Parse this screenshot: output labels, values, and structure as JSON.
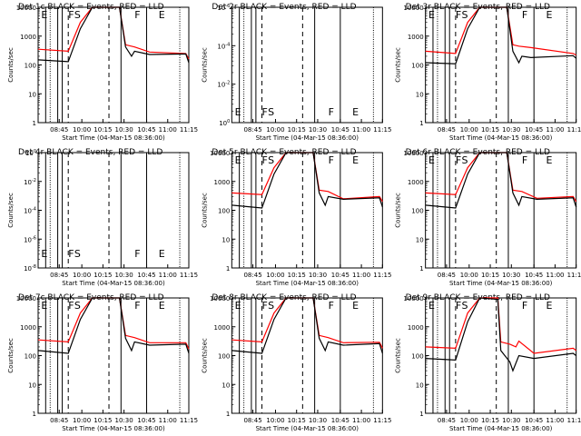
{
  "xlabel": "Start Time (04-Mar-15 08:36:00)",
  "ylabel": "Counts/sec",
  "x_ticks": [
    "08:45",
    "10:00",
    "10:15",
    "10:30",
    "10:45",
    "11:00",
    "11:15"
  ],
  "colors": {
    "events": "#000000",
    "lld": "#ff0000",
    "background": "#ffffff"
  },
  "chart_data": [
    {
      "type": "line",
      "title": "Det 1c BLACK = Events, RED = LLD",
      "scale": "log",
      "y_ticks": [
        "1",
        "10",
        "100",
        "1000",
        "10000"
      ],
      "markers": [
        {
          "label": "E",
          "pos": 0.02
        },
        {
          "label": "F",
          "pos": 0.2
        },
        {
          "label": "S",
          "pos": 0.24
        },
        {
          "label": "F",
          "pos": 0.64
        },
        {
          "label": "E",
          "pos": 0.8
        }
      ],
      "series": [
        {
          "color": "red",
          "points": [
            [
              0,
              350
            ],
            [
              0.2,
              300
            ],
            [
              0.28,
              3000
            ],
            [
              0.36,
              12000
            ],
            [
              0.54,
              12000
            ],
            [
              0.58,
              500
            ],
            [
              0.64,
              420
            ],
            [
              0.74,
              280
            ],
            [
              0.98,
              250
            ],
            [
              1.0,
              160
            ]
          ]
        },
        {
          "color": "black",
          "points": [
            [
              0,
              150
            ],
            [
              0.2,
              130
            ],
            [
              0.28,
              1800
            ],
            [
              0.36,
              10000
            ],
            [
              0.54,
              10000
            ],
            [
              0.58,
              420
            ],
            [
              0.62,
              200
            ],
            [
              0.64,
              300
            ],
            [
              0.74,
              230
            ],
            [
              0.98,
              240
            ],
            [
              1.0,
              120
            ]
          ]
        }
      ]
    },
    {
      "type": "line",
      "title": "Det 2r BLACK = Events, RED = LLD",
      "scale": "log",
      "y_ticks": [
        "10^0",
        "10^-2",
        "10^-4",
        "10^-6"
      ],
      "markers": [
        {
          "label": "E",
          "pos": 0.02
        },
        {
          "label": "F",
          "pos": 0.2
        },
        {
          "label": "S",
          "pos": 0.24
        },
        {
          "label": "F",
          "pos": 0.64
        },
        {
          "label": "E",
          "pos": 0.8
        }
      ],
      "series": []
    },
    {
      "type": "line",
      "title": "Det 3r BLACK = Events, RED = LLD",
      "scale": "log",
      "y_ticks": [
        "1",
        "10",
        "100",
        "1000",
        "10000"
      ],
      "markers": [
        {
          "label": "E",
          "pos": 0.02
        },
        {
          "label": "F",
          "pos": 0.2
        },
        {
          "label": "S",
          "pos": 0.24
        },
        {
          "label": "F",
          "pos": 0.64
        },
        {
          "label": "E",
          "pos": 0.8
        }
      ],
      "series": [
        {
          "color": "red",
          "points": [
            [
              0,
              300
            ],
            [
              0.2,
              250
            ],
            [
              0.28,
              3000
            ],
            [
              0.36,
              12000
            ],
            [
              0.54,
              12000
            ],
            [
              0.58,
              500
            ],
            [
              0.62,
              450
            ],
            [
              0.7,
              400
            ],
            [
              0.98,
              250
            ],
            [
              1.0,
              220
            ]
          ]
        },
        {
          "color": "black",
          "points": [
            [
              0,
              120
            ],
            [
              0.2,
              110
            ],
            [
              0.28,
              1800
            ],
            [
              0.36,
              10000
            ],
            [
              0.54,
              10000
            ],
            [
              0.58,
              300
            ],
            [
              0.62,
              120
            ],
            [
              0.64,
              200
            ],
            [
              0.7,
              180
            ],
            [
              0.98,
              210
            ],
            [
              1.0,
              170
            ]
          ]
        }
      ]
    },
    {
      "type": "line",
      "title": "Det 4r BLACK = Events, RED = LLD",
      "scale": "log",
      "y_ticks": [
        "10^-8",
        "10^-6",
        "10^-4",
        "10^-2",
        "10^0"
      ],
      "markers": [
        {
          "label": "E",
          "pos": 0.02
        },
        {
          "label": "F",
          "pos": 0.2
        },
        {
          "label": "S",
          "pos": 0.24
        },
        {
          "label": "F",
          "pos": 0.64
        },
        {
          "label": "E",
          "pos": 0.8
        }
      ],
      "series": []
    },
    {
      "type": "line",
      "title": "Det 5r BLACK = Events, RED = LLD",
      "scale": "log",
      "y_ticks": [
        "1",
        "10",
        "100",
        "1000",
        "10000"
      ],
      "markers": [
        {
          "label": "E",
          "pos": 0.02
        },
        {
          "label": "F",
          "pos": 0.2
        },
        {
          "label": "S",
          "pos": 0.24
        },
        {
          "label": "F",
          "pos": 0.64
        },
        {
          "label": "E",
          "pos": 0.8
        }
      ],
      "series": [
        {
          "color": "red",
          "points": [
            [
              0,
              400
            ],
            [
              0.2,
              350
            ],
            [
              0.28,
              3000
            ],
            [
              0.36,
              12000
            ],
            [
              0.54,
              12000
            ],
            [
              0.58,
              500
            ],
            [
              0.64,
              450
            ],
            [
              0.74,
              250
            ],
            [
              0.98,
              300
            ],
            [
              1.0,
              200
            ]
          ]
        },
        {
          "color": "black",
          "points": [
            [
              0,
              150
            ],
            [
              0.2,
              120
            ],
            [
              0.28,
              1800
            ],
            [
              0.36,
              10000
            ],
            [
              0.54,
              10000
            ],
            [
              0.58,
              400
            ],
            [
              0.62,
              150
            ],
            [
              0.64,
              300
            ],
            [
              0.74,
              240
            ],
            [
              0.98,
              270
            ],
            [
              1.0,
              130
            ]
          ]
        }
      ]
    },
    {
      "type": "line",
      "title": "Det 6r BLACK = Events, RED = LLD",
      "scale": "log",
      "y_ticks": [
        "1",
        "10",
        "100",
        "1000",
        "10000"
      ],
      "markers": [
        {
          "label": "E",
          "pos": 0.02
        },
        {
          "label": "F",
          "pos": 0.2
        },
        {
          "label": "S",
          "pos": 0.24
        },
        {
          "label": "F",
          "pos": 0.64
        },
        {
          "label": "E",
          "pos": 0.8
        }
      ],
      "series": [
        {
          "color": "red",
          "points": [
            [
              0,
              400
            ],
            [
              0.2,
              350
            ],
            [
              0.28,
              3000
            ],
            [
              0.36,
              12000
            ],
            [
              0.54,
              12000
            ],
            [
              0.58,
              500
            ],
            [
              0.64,
              450
            ],
            [
              0.74,
              260
            ],
            [
              0.98,
              300
            ],
            [
              1.0,
              200
            ]
          ]
        },
        {
          "color": "black",
          "points": [
            [
              0,
              150
            ],
            [
              0.2,
              120
            ],
            [
              0.28,
              1800
            ],
            [
              0.36,
              10000
            ],
            [
              0.54,
              10000
            ],
            [
              0.58,
              400
            ],
            [
              0.62,
              150
            ],
            [
              0.64,
              300
            ],
            [
              0.74,
              240
            ],
            [
              0.98,
              270
            ],
            [
              1.0,
              130
            ]
          ]
        }
      ]
    },
    {
      "type": "line",
      "title": "Det 7c BLACK = Events, RED = LLD",
      "scale": "log",
      "y_ticks": [
        "1",
        "10",
        "100",
        "1000",
        "10000"
      ],
      "markers": [
        {
          "label": "E",
          "pos": 0.02
        },
        {
          "label": "F",
          "pos": 0.2
        },
        {
          "label": "S",
          "pos": 0.24
        },
        {
          "label": "F",
          "pos": 0.64
        },
        {
          "label": "E",
          "pos": 0.8
        }
      ],
      "series": [
        {
          "color": "red",
          "points": [
            [
              0,
              350
            ],
            [
              0.2,
              300
            ],
            [
              0.28,
              3000
            ],
            [
              0.36,
              12000
            ],
            [
              0.54,
              12000
            ],
            [
              0.58,
              500
            ],
            [
              0.64,
              420
            ],
            [
              0.74,
              280
            ],
            [
              0.98,
              280
            ],
            [
              1.0,
              170
            ]
          ]
        },
        {
          "color": "black",
          "points": [
            [
              0,
              150
            ],
            [
              0.2,
              120
            ],
            [
              0.28,
              1800
            ],
            [
              0.36,
              10000
            ],
            [
              0.54,
              10000
            ],
            [
              0.58,
              400
            ],
            [
              0.62,
              150
            ],
            [
              0.64,
              300
            ],
            [
              0.74,
              230
            ],
            [
              0.98,
              250
            ],
            [
              1.0,
              120
            ]
          ]
        }
      ]
    },
    {
      "type": "line",
      "title": "Det 8r BLACK = Events, RED = LLD",
      "scale": "log",
      "y_ticks": [
        "1",
        "10",
        "100",
        "1000",
        "10000"
      ],
      "markers": [
        {
          "label": "E",
          "pos": 0.02
        },
        {
          "label": "F",
          "pos": 0.2
        },
        {
          "label": "S",
          "pos": 0.24
        },
        {
          "label": "F",
          "pos": 0.64
        },
        {
          "label": "E",
          "pos": 0.8
        }
      ],
      "series": [
        {
          "color": "red",
          "points": [
            [
              0,
              350
            ],
            [
              0.2,
              300
            ],
            [
              0.28,
              3000
            ],
            [
              0.36,
              12000
            ],
            [
              0.54,
              12000
            ],
            [
              0.58,
              500
            ],
            [
              0.64,
              420
            ],
            [
              0.74,
              280
            ],
            [
              0.98,
              290
            ],
            [
              1.0,
              180
            ]
          ]
        },
        {
          "color": "black",
          "points": [
            [
              0,
              150
            ],
            [
              0.2,
              120
            ],
            [
              0.28,
              1800
            ],
            [
              0.36,
              10000
            ],
            [
              0.54,
              10000
            ],
            [
              0.58,
              400
            ],
            [
              0.62,
              150
            ],
            [
              0.64,
              300
            ],
            [
              0.74,
              230
            ],
            [
              0.98,
              260
            ],
            [
              1.0,
              120
            ]
          ]
        }
      ]
    },
    {
      "type": "line",
      "title": "Det 9r BLACK = Events, RED = LLD",
      "scale": "log",
      "y_ticks": [
        "1",
        "10",
        "100",
        "1000",
        "10000"
      ],
      "markers": [
        {
          "label": "E",
          "pos": 0.02
        },
        {
          "label": "F",
          "pos": 0.2
        },
        {
          "label": "S",
          "pos": 0.24
        },
        {
          "label": "F",
          "pos": 0.64
        },
        {
          "label": "E",
          "pos": 0.8
        }
      ],
      "series": [
        {
          "color": "red",
          "points": [
            [
              0,
              200
            ],
            [
              0.2,
              180
            ],
            [
              0.28,
              3000
            ],
            [
              0.36,
              12000
            ],
            [
              0.48,
              12000
            ],
            [
              0.5,
              300
            ],
            [
              0.56,
              250
            ],
            [
              0.6,
              200
            ],
            [
              0.62,
              320
            ],
            [
              0.72,
              120
            ],
            [
              0.98,
              180
            ],
            [
              1.0,
              150
            ]
          ]
        },
        {
          "color": "black",
          "points": [
            [
              0,
              80
            ],
            [
              0.2,
              70
            ],
            [
              0.28,
              1500
            ],
            [
              0.36,
              10000
            ],
            [
              0.48,
              9000
            ],
            [
              0.5,
              150
            ],
            [
              0.56,
              60
            ],
            [
              0.58,
              30
            ],
            [
              0.62,
              100
            ],
            [
              0.72,
              80
            ],
            [
              0.98,
              120
            ],
            [
              1.0,
              100
            ]
          ]
        }
      ]
    }
  ]
}
